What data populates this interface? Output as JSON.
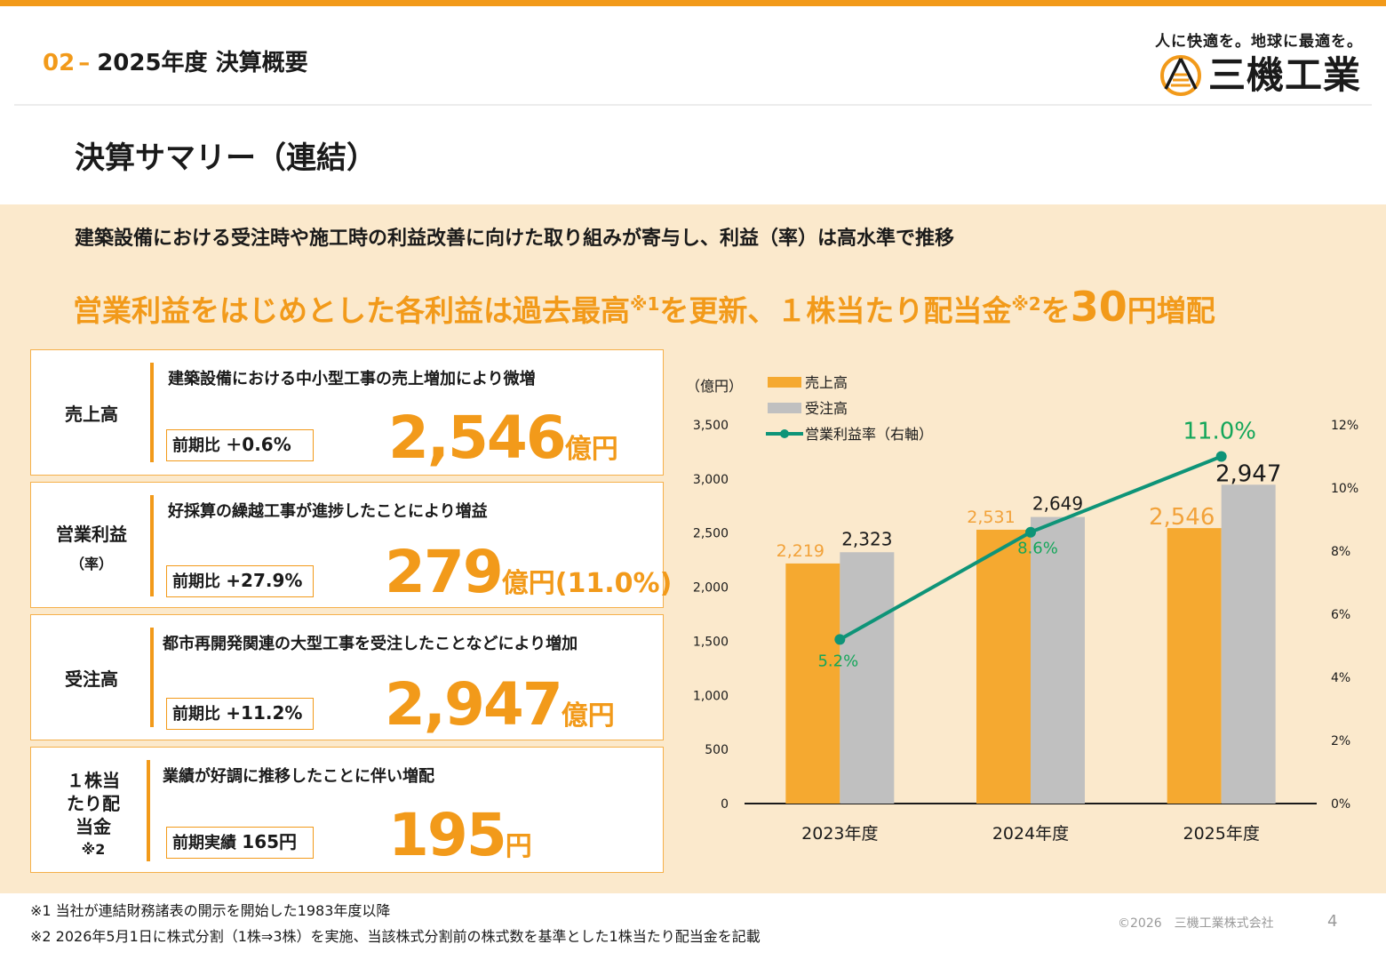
{
  "header": {
    "section_num": "02",
    "section_dash": "–",
    "section_title": "2025年度 決算概要"
  },
  "logo": {
    "tagline": "人に快適を。地球に最適を。",
    "name": "三機工業",
    "icon": "sanki-logo-mark"
  },
  "page_title": "決算サマリー（連結）",
  "subtitle": "建築設備における受注時や施工時の利益改善に向けた取り組みが寄与し、利益（率）は高水準で推移",
  "headline": {
    "part1": "営業利益をはじめとした各利益は過去最高",
    "note1": "※1",
    "part2": "を更新、１株当たり配当金",
    "note2": "※2",
    "part3": "を",
    "number": "30",
    "part4": "円増配"
  },
  "cards": [
    {
      "label": "売上高",
      "label_note": "",
      "desc": "建築設備における中小型工事の売上増加により微増",
      "prev_label": "前期比 ＋",
      "prev_value": "0.6%",
      "value": "2,546",
      "unit": "億円",
      "extra": ""
    },
    {
      "label": "営業利益",
      "label_note": "（率）",
      "desc": "好採算の繰越工事が進捗したことにより増益",
      "prev_label": "前期比 ",
      "prev_value": "+27.9%",
      "value": "279",
      "unit": "億円",
      "extra": "(11.0%)"
    },
    {
      "label": "受注高",
      "label_note": "",
      "desc": "都市再開発関連の大型工事を受注したことなどにより増加",
      "prev_label": "前期比 ",
      "prev_value": "+11.2%",
      "value": "2,947",
      "unit": "億円",
      "extra": ""
    },
    {
      "label": "１株当たり配当金",
      "label_note": "※2",
      "desc": "業績が好調に推移したことに伴い増配",
      "prev_label": "前期実績 ",
      "prev_value": "165円",
      "value": "195",
      "unit": "円",
      "extra": ""
    }
  ],
  "chart_data": {
    "type": "bar",
    "unit_label": "（億円）",
    "categories": [
      "2023年度",
      "2024年度",
      "2025年度"
    ],
    "series": [
      {
        "name": "売上高",
        "type": "bar",
        "axis": "left",
        "values": [
          2219,
          2531,
          2546
        ],
        "labels": [
          "2,219",
          "2,531",
          "2,546"
        ],
        "color": "#f5a930"
      },
      {
        "name": "受注高",
        "type": "bar",
        "axis": "left",
        "values": [
          2323,
          2649,
          2947
        ],
        "labels": [
          "2,323",
          "2,649",
          "2,947"
        ],
        "color": "#c0c0c0"
      },
      {
        "name": "営業利益率（右軸）",
        "type": "line",
        "axis": "right",
        "values": [
          5.2,
          8.6,
          11.0
        ],
        "labels": [
          "5.2%",
          "8.6%",
          "11.0%"
        ],
        "color": "#0e9478"
      }
    ],
    "y_left": {
      "min": 0,
      "max": 3500,
      "ticks": [
        "0",
        "500",
        "1,000",
        "1,500",
        "2,000",
        "2,500",
        "3,000",
        "3,500"
      ]
    },
    "y_right": {
      "min": 0,
      "max": 12,
      "ticks": [
        "0%",
        "2%",
        "4%",
        "6%",
        "8%",
        "10%",
        "12%"
      ]
    },
    "grid": false,
    "legend_position": "top-left"
  },
  "footnotes": [
    "※1 当社が連結財務諸表の開示を開始した1983年度以降",
    "※2 2026年5月1日に株式分割（1株⇒3株）を実施、当該株式分割前の株式数を基準とした1株当たり配当金を記載"
  ],
  "copyright": "©2026　三機工業株式会社",
  "page_number": "4"
}
